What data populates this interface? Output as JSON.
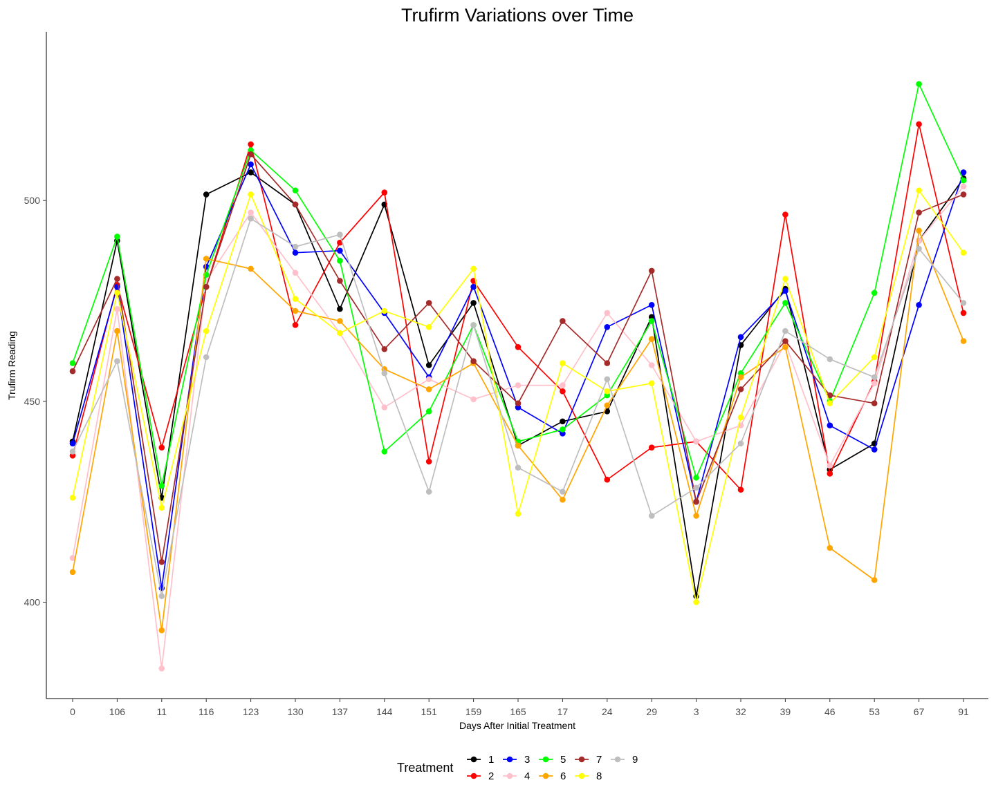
{
  "chart_data": {
    "type": "line",
    "title": "Trufirm Variations over Time",
    "xlabel": "Days After Initial Treatment",
    "ylabel": "Trufirm Reading",
    "categories": [
      "0",
      "106",
      "11",
      "116",
      "123",
      "130",
      "137",
      "144",
      "151",
      "159",
      "165",
      "17",
      "24",
      "29",
      "3",
      "32",
      "39",
      "46",
      "53",
      "67",
      "91"
    ],
    "y_ticks": [
      400,
      450,
      500
    ],
    "y_tick_labels": [
      "400",
      "450",
      "500"
    ],
    "ylim": [
      376,
      542
    ],
    "grid": false,
    "legend": {
      "title": "Treatment",
      "position": "bottom"
    },
    "series": [
      {
        "name": "1",
        "color": "#000000",
        "values": [
          440,
          490,
          426,
          501.5,
          507,
          499,
          473,
          499,
          459,
          474.5,
          439,
          445,
          447.5,
          471,
          401.5,
          464,
          478,
          433,
          439.5,
          490,
          505.5
        ]
      },
      {
        "name": "2",
        "color": "#ff0000",
        "values": [
          436.5,
          479,
          438.5,
          478.5,
          514,
          469,
          489.5,
          502,
          435,
          480,
          463.5,
          452.5,
          430.5,
          438.5,
          440,
          428,
          496.5,
          432,
          455,
          519,
          472
        ]
      },
      {
        "name": "3",
        "color": "#0000ff",
        "values": [
          439.5,
          478.5,
          403.5,
          483.5,
          509,
          487,
          487.5,
          472,
          456,
          478.5,
          448.5,
          442,
          468.5,
          474,
          425,
          466,
          477.5,
          444,
          438,
          474,
          507
        ]
      },
      {
        "name": "4",
        "color": "#ffc0cb",
        "values": [
          411,
          473,
          383.5,
          480,
          497,
          482,
          467,
          448.5,
          455.5,
          450.5,
          454,
          454,
          472,
          459,
          440,
          444,
          464.5,
          434,
          454.5,
          490,
          503.5
        ]
      },
      {
        "name": "5",
        "color": "#00ff00",
        "values": [
          459.5,
          491,
          429,
          481.5,
          512.5,
          502.5,
          485,
          437.5,
          447.5,
          469,
          440,
          443,
          451.5,
          470,
          431,
          457,
          474.5,
          450,
          477,
          529,
          505
        ]
      },
      {
        "name": "6",
        "color": "#ffa500",
        "values": [
          407.5,
          467.5,
          393,
          485.5,
          483,
          472.5,
          470,
          458,
          453,
          459.5,
          439,
          425.5,
          449,
          465.5,
          421.5,
          456,
          463.5,
          413.5,
          405.5,
          492.5,
          465
        ]
      },
      {
        "name": "7",
        "color": "#a52a2a",
        "values": [
          457.5,
          480.5,
          410,
          478.5,
          511.5,
          499,
          480,
          463,
          474.5,
          460,
          449.5,
          470,
          459.5,
          482.5,
          425,
          453,
          465,
          451.5,
          449.5,
          497,
          501.5
        ]
      },
      {
        "name": "8",
        "color": "#ffff00",
        "values": [
          426,
          477,
          423.5,
          467.5,
          501.5,
          475.5,
          467,
          472.5,
          468.5,
          483,
          422,
          459.5,
          452.5,
          454.5,
          400,
          446,
          480.5,
          449.5,
          461,
          502.5,
          487
        ]
      },
      {
        "name": "9",
        "color": "#bebebe",
        "values": [
          437.5,
          460,
          401.5,
          461,
          495.5,
          488.5,
          491.5,
          457,
          427.5,
          469,
          433.5,
          427.5,
          455.5,
          421.5,
          428.5,
          439.5,
          467.5,
          460.5,
          456,
          488,
          474.5
        ]
      }
    ]
  }
}
